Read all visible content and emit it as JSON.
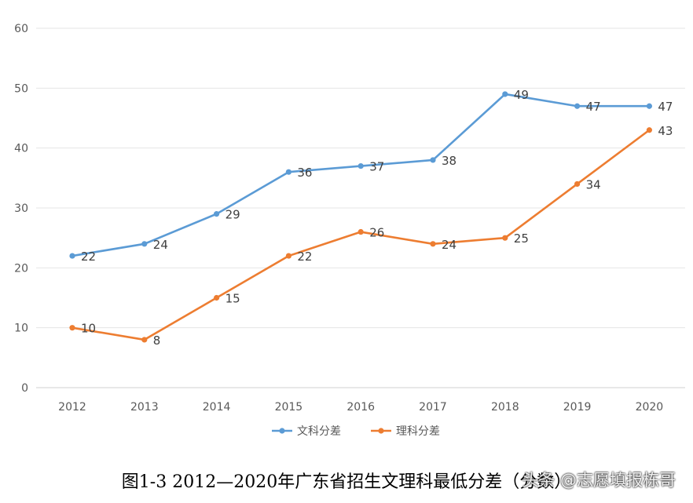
{
  "chart_data": {
    "type": "line",
    "title": "",
    "xlabel": "",
    "ylabel": "",
    "categories": [
      "2012",
      "2013",
      "2014",
      "2015",
      "2016",
      "2017",
      "2018",
      "2019",
      "2020"
    ],
    "ylim": [
      0,
      60
    ],
    "yticks": [
      0,
      10,
      20,
      30,
      40,
      50,
      60
    ],
    "grid": true,
    "legend_position": "bottom",
    "series": [
      {
        "name": "文科分差",
        "color": "#5B9BD5",
        "values": [
          22,
          24,
          29,
          36,
          37,
          38,
          49,
          47,
          47
        ]
      },
      {
        "name": "理科分差",
        "color": "#ED7D31",
        "values": [
          10,
          8,
          15,
          22,
          26,
          24,
          25,
          34,
          43
        ]
      }
    ]
  },
  "caption": "图1-3 2012—2020年广东省招生文理科最低分差（分数）",
  "watermark": "头条 @志愿填报栋哥"
}
